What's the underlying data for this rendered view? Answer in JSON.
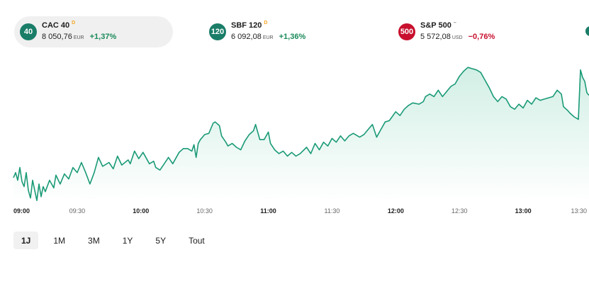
{
  "tickers": [
    {
      "badge": "40",
      "name": "CAC 40",
      "marker": "D",
      "price": "8 050,76",
      "currency": "EUR",
      "change": "+1,37%",
      "badge_color": "#1a7d68",
      "marker_color": "#f5a623",
      "change_color": "#1a8a5a"
    },
    {
      "badge": "120",
      "name": "SBF 120",
      "marker": "D",
      "price": "6 092,08",
      "currency": "EUR",
      "change": "+1,36%",
      "badge_color": "#1a7d68",
      "marker_color": "#f5a623",
      "change_color": "#1a8a5a"
    },
    {
      "badge": "500",
      "name": "S&P 500",
      "marker": "–",
      "price": "5 572,08",
      "currency": "USD",
      "change": "−0,76%",
      "badge_color": "#c8102e",
      "marker_color": "#777777",
      "change_color": "#c8102e"
    }
  ],
  "periods": [
    "1J",
    "1M",
    "3M",
    "1Y",
    "5Y",
    "Tout"
  ],
  "active_period": "1J",
  "chart_data": {
    "type": "area",
    "x_ticks": [
      "09:00",
      "09:30",
      "10:00",
      "10:30",
      "11:00",
      "11:30",
      "12:00",
      "12:30",
      "13:00",
      "13:30"
    ],
    "bold_ticks": [
      "09:00",
      "10:00",
      "11:00",
      "12:00",
      "13:00"
    ],
    "x_range": [
      "09:00",
      "13:31"
    ],
    "y_range": [
      7957,
      8067
    ],
    "line_color": "#1a9a76",
    "fill_color": "#cfeee4",
    "points": [
      [
        "09:00",
        7976
      ],
      [
        "09:01",
        7980
      ],
      [
        "09:02",
        7974
      ],
      [
        "09:03",
        7984
      ],
      [
        "09:04",
        7973
      ],
      [
        "09:05",
        7969
      ],
      [
        "09:06",
        7980
      ],
      [
        "09:07",
        7966
      ],
      [
        "09:08",
        7960
      ],
      [
        "09:09",
        7974
      ],
      [
        "09:10",
        7966
      ],
      [
        "09:11",
        7958
      ],
      [
        "09:12",
        7971
      ],
      [
        "09:13",
        7961
      ],
      [
        "09:14",
        7969
      ],
      [
        "09:15",
        7965
      ],
      [
        "09:17",
        7974
      ],
      [
        "09:19",
        7968
      ],
      [
        "09:20",
        7978
      ],
      [
        "09:22",
        7971
      ],
      [
        "09:24",
        7979
      ],
      [
        "09:26",
        7975
      ],
      [
        "09:28",
        7984
      ],
      [
        "09:30",
        7980
      ],
      [
        "09:32",
        7988
      ],
      [
        "09:34",
        7980
      ],
      [
        "09:36",
        7971
      ],
      [
        "09:38",
        7980
      ],
      [
        "09:40",
        7992
      ],
      [
        "09:42",
        7985
      ],
      [
        "09:45",
        7988
      ],
      [
        "09:47",
        7983
      ],
      [
        "09:49",
        7993
      ],
      [
        "09:51",
        7986
      ],
      [
        "09:54",
        7990
      ],
      [
        "09:55",
        7987
      ],
      [
        "09:57",
        7997
      ],
      [
        "09:59",
        7991
      ],
      [
        "10:01",
        7996
      ],
      [
        "10:04",
        7987
      ],
      [
        "10:06",
        7989
      ],
      [
        "10:07",
        7984
      ],
      [
        "10:09",
        7982
      ],
      [
        "10:11",
        7987
      ],
      [
        "10:13",
        7992
      ],
      [
        "10:15",
        7987
      ],
      [
        "10:18",
        7996
      ],
      [
        "10:20",
        7999
      ],
      [
        "10:22",
        7999
      ],
      [
        "10:24",
        7997
      ],
      [
        "10:25",
        8002
      ],
      [
        "10:26",
        7992
      ],
      [
        "10:27",
        8003
      ],
      [
        "10:28",
        8006
      ],
      [
        "10:30",
        8010
      ],
      [
        "10:32",
        8011
      ],
      [
        "10:34",
        8019
      ],
      [
        "10:35",
        8020
      ],
      [
        "10:37",
        8017
      ],
      [
        "10:38",
        8009
      ],
      [
        "10:40",
        8004
      ],
      [
        "10:41",
        8001
      ],
      [
        "10:43",
        8003
      ],
      [
        "10:45",
        8000
      ],
      [
        "10:47",
        7998
      ],
      [
        "10:49",
        8005
      ],
      [
        "10:51",
        8010
      ],
      [
        "10:53",
        8013
      ],
      [
        "10:54",
        8018
      ],
      [
        "10:56",
        8006
      ],
      [
        "10:58",
        8006
      ],
      [
        "11:00",
        8012
      ],
      [
        "11:01",
        8003
      ],
      [
        "11:03",
        7998
      ],
      [
        "11:05",
        7995
      ],
      [
        "11:07",
        7997
      ],
      [
        "11:09",
        7993
      ],
      [
        "11:11",
        7996
      ],
      [
        "11:13",
        7993
      ],
      [
        "11:15",
        7995
      ],
      [
        "11:18",
        8000
      ],
      [
        "11:20",
        7995
      ],
      [
        "11:22",
        8003
      ],
      [
        "11:24",
        7998
      ],
      [
        "11:26",
        8004
      ],
      [
        "11:28",
        8001
      ],
      [
        "11:30",
        8007
      ],
      [
        "11:32",
        8004
      ],
      [
        "11:34",
        8009
      ],
      [
        "11:36",
        8005
      ],
      [
        "11:38",
        8009
      ],
      [
        "11:40",
        8011
      ],
      [
        "11:43",
        8008
      ],
      [
        "11:45",
        8010
      ],
      [
        "11:47",
        8014
      ],
      [
        "11:49",
        8018
      ],
      [
        "11:51",
        8008
      ],
      [
        "11:53",
        8014
      ],
      [
        "11:55",
        8020
      ],
      [
        "11:57",
        8021
      ],
      [
        "12:00",
        8028
      ],
      [
        "12:02",
        8025
      ],
      [
        "12:04",
        8030
      ],
      [
        "12:06",
        8033
      ],
      [
        "12:08",
        8035
      ],
      [
        "12:11",
        8034
      ],
      [
        "12:13",
        8036
      ],
      [
        "12:14",
        8040
      ],
      [
        "12:16",
        8042
      ],
      [
        "12:18",
        8040
      ],
      [
        "12:20",
        8045
      ],
      [
        "12:22",
        8040
      ],
      [
        "12:24",
        8044
      ],
      [
        "12:26",
        8048
      ],
      [
        "12:28",
        8050
      ],
      [
        "12:30",
        8056
      ],
      [
        "12:32",
        8060
      ],
      [
        "12:34",
        8063
      ],
      [
        "12:36",
        8062
      ],
      [
        "12:38",
        8061
      ],
      [
        "12:40",
        8059
      ],
      [
        "12:42",
        8053
      ],
      [
        "12:44",
        8047
      ],
      [
        "12:46",
        8040
      ],
      [
        "12:48",
        8036
      ],
      [
        "12:50",
        8040
      ],
      [
        "12:52",
        8038
      ],
      [
        "12:54",
        8032
      ],
      [
        "12:56",
        8030
      ],
      [
        "12:58",
        8034
      ],
      [
        "13:00",
        8031
      ],
      [
        "13:02",
        8037
      ],
      [
        "13:04",
        8034
      ],
      [
        "13:06",
        8039
      ],
      [
        "13:08",
        8037
      ],
      [
        "13:10",
        8038
      ],
      [
        "13:12",
        8039
      ],
      [
        "13:14",
        8040
      ],
      [
        "13:16",
        8045
      ],
      [
        "13:18",
        8042
      ],
      [
        "13:19",
        8032
      ],
      [
        "13:21",
        8029
      ],
      [
        "13:22",
        8027
      ],
      [
        "13:24",
        8024
      ],
      [
        "13:26",
        8022
      ],
      [
        "13:27",
        8061
      ],
      [
        "13:28",
        8055
      ],
      [
        "13:29",
        8052
      ],
      [
        "13:30",
        8043
      ],
      [
        "13:31",
        8041
      ]
    ]
  }
}
